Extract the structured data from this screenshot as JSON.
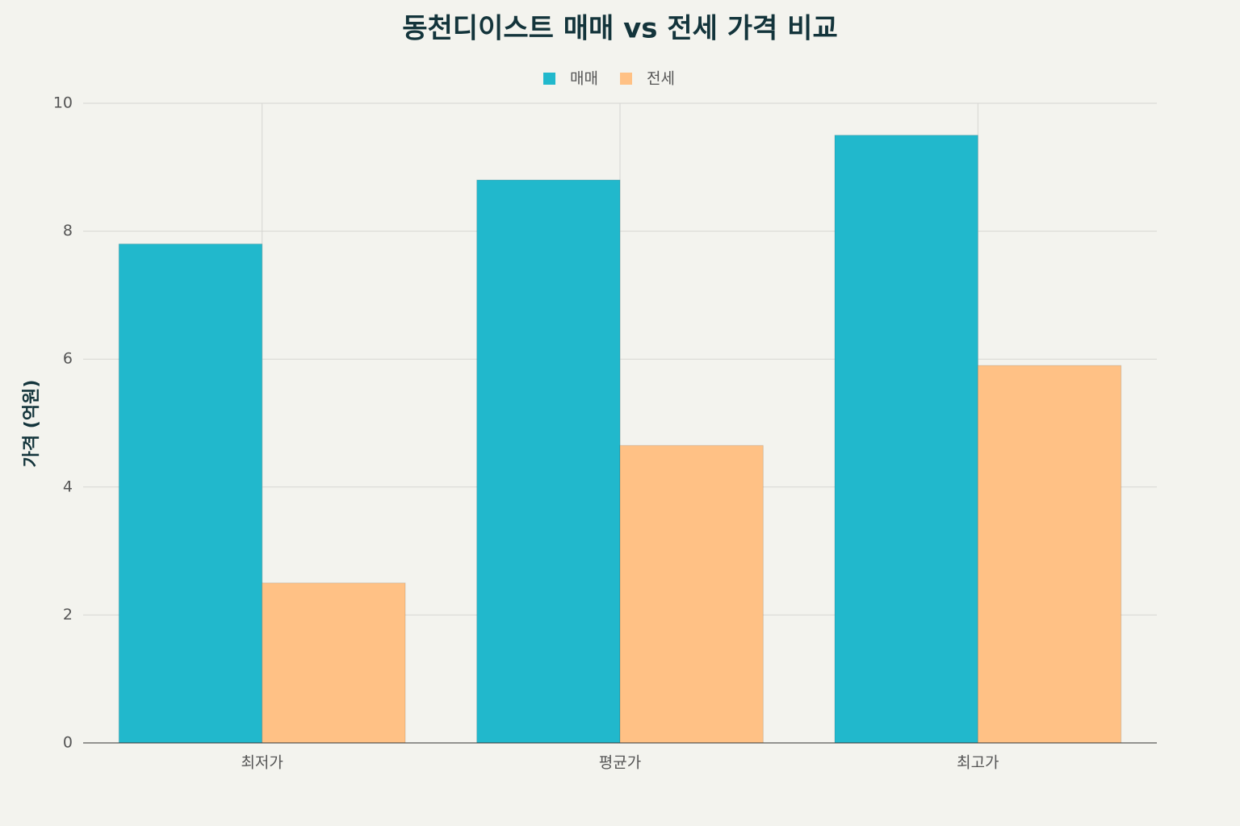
{
  "chart_data": {
    "type": "bar",
    "title": "동천디이스트 매매 vs 전세 가격 비교",
    "y_label": "가격 (억원)",
    "categories": [
      "최저가",
      "평균가",
      "최고가"
    ],
    "series": [
      {
        "name": "매매",
        "color": "#21b8cc",
        "values": [
          7.8,
          8.8,
          9.5
        ]
      },
      {
        "name": "전세",
        "color": "#ffc185",
        "values": [
          2.5,
          4.65,
          5.9
        ]
      }
    ],
    "ylim": [
      0,
      10
    ],
    "yticks": [
      0,
      2,
      4,
      6,
      8,
      10
    ],
    "grid": true,
    "legend": "top"
  }
}
